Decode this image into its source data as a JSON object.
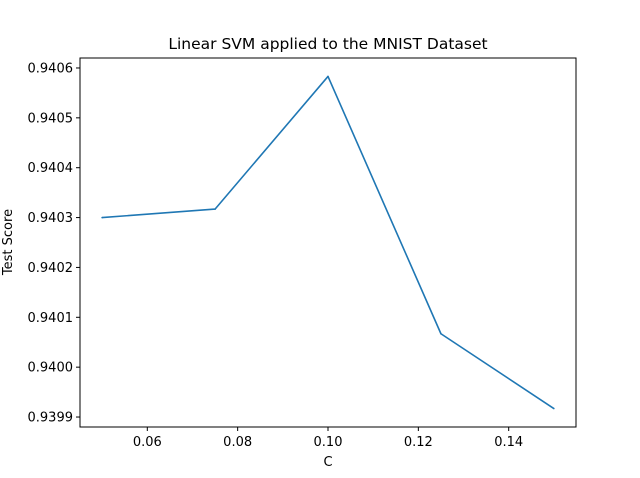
{
  "chart_data": {
    "type": "line",
    "title": "Linear SVM applied to the MNIST Dataset",
    "xlabel": "C",
    "ylabel": "Test Score",
    "xlim": [
      0.0451,
      0.1549
    ],
    "ylim": [
      0.93988,
      0.94062
    ],
    "x_ticks": [
      {
        "value": 0.06,
        "label": "0.06"
      },
      {
        "value": 0.08,
        "label": "0.08"
      },
      {
        "value": 0.1,
        "label": "0.10"
      },
      {
        "value": 0.12,
        "label": "0.12"
      },
      {
        "value": 0.14,
        "label": "0.14"
      }
    ],
    "y_ticks": [
      {
        "value": 0.9399,
        "label": "0.9399"
      },
      {
        "value": 0.94,
        "label": "0.9400"
      },
      {
        "value": 0.9401,
        "label": "0.9401"
      },
      {
        "value": 0.9402,
        "label": "0.9402"
      },
      {
        "value": 0.9403,
        "label": "0.9403"
      },
      {
        "value": 0.9404,
        "label": "0.9404"
      },
      {
        "value": 0.9405,
        "label": "0.9405"
      },
      {
        "value": 0.9406,
        "label": "0.9406"
      }
    ],
    "grid": false,
    "legend": "none",
    "series": [
      {
        "color": "#1f77b4",
        "x": [
          0.05,
          0.075,
          0.1,
          0.125,
          0.15
        ],
        "y": [
          0.9403,
          0.940317,
          0.940583,
          0.940067,
          0.939917
        ]
      }
    ]
  }
}
